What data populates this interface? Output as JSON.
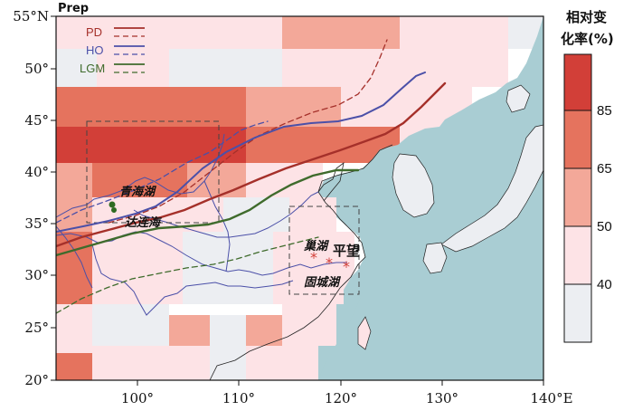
{
  "map": {
    "variable_label": "Prep",
    "lat_ticks": [
      "20°",
      "25°",
      "30°",
      "35°",
      "40°",
      "45°",
      "50°",
      "55°N"
    ],
    "lon_ticks": [
      "100°",
      "110°",
      "120°",
      "130°",
      "140°E"
    ],
    "colors": {
      "ocean": "#a9cdd3",
      "land_base": "#ffffff",
      "c40": "#eceef2",
      "c50": "#fde3e6",
      "c65": "#f3a899",
      "c85": "#e5735e",
      "cmax": "#d23f38",
      "pd": "#a5302a",
      "ho": "#4b50a8",
      "lgm": "#3f6b2c"
    }
  },
  "legend": {
    "items": [
      {
        "label": "PD",
        "color": "#a5302a"
      },
      {
        "label": "HO",
        "color": "#4b50a8"
      },
      {
        "label": "LGM",
        "color": "#3f6b2c"
      }
    ]
  },
  "colorbar": {
    "title_line1": "相对变",
    "title_line2": "化率(%)",
    "labels": [
      "85",
      "65",
      "50",
      "40"
    ]
  },
  "annotations": {
    "qinghai": "青海湖",
    "dalianhai": "达连海",
    "chaohu": "巢湖",
    "pingwang": "平望",
    "guchenghu": "固城湖"
  }
}
